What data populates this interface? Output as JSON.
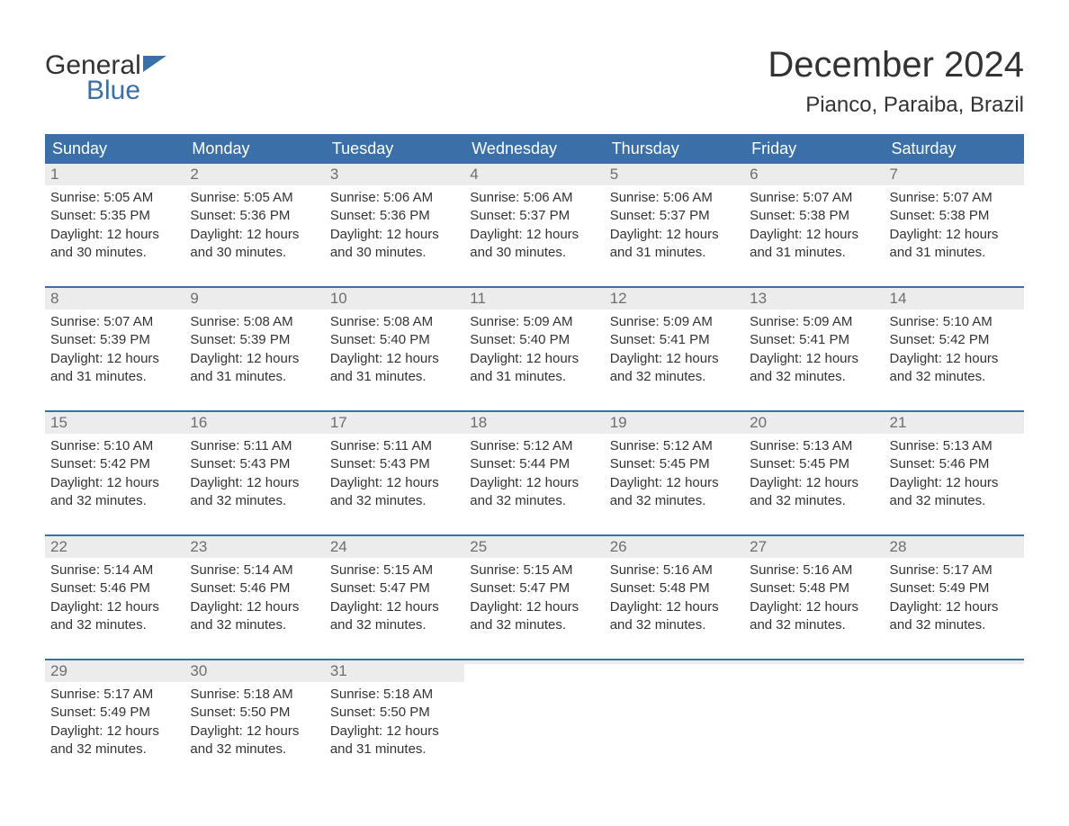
{
  "logo": {
    "text1": "General",
    "text2": "Blue"
  },
  "title": "December 2024",
  "location": "Pianco, Paraiba, Brazil",
  "colors": {
    "header_bg": "#3a6fa8",
    "header_text": "#ffffff",
    "daynum_bg": "#ececec",
    "daynum_text": "#6e6e6e",
    "body_text": "#333333",
    "week_border": "#3a6fa8",
    "logo_blue": "#3a6fa8",
    "logo_dark": "#333333",
    "background": "#ffffff"
  },
  "day_names": [
    "Sunday",
    "Monday",
    "Tuesday",
    "Wednesday",
    "Thursday",
    "Friday",
    "Saturday"
  ],
  "weeks": [
    [
      {
        "n": "1",
        "sr": "Sunrise: 5:05 AM",
        "ss": "Sunset: 5:35 PM",
        "d1": "Daylight: 12 hours",
        "d2": "and 30 minutes."
      },
      {
        "n": "2",
        "sr": "Sunrise: 5:05 AM",
        "ss": "Sunset: 5:36 PM",
        "d1": "Daylight: 12 hours",
        "d2": "and 30 minutes."
      },
      {
        "n": "3",
        "sr": "Sunrise: 5:06 AM",
        "ss": "Sunset: 5:36 PM",
        "d1": "Daylight: 12 hours",
        "d2": "and 30 minutes."
      },
      {
        "n": "4",
        "sr": "Sunrise: 5:06 AM",
        "ss": "Sunset: 5:37 PM",
        "d1": "Daylight: 12 hours",
        "d2": "and 30 minutes."
      },
      {
        "n": "5",
        "sr": "Sunrise: 5:06 AM",
        "ss": "Sunset: 5:37 PM",
        "d1": "Daylight: 12 hours",
        "d2": "and 31 minutes."
      },
      {
        "n": "6",
        "sr": "Sunrise: 5:07 AM",
        "ss": "Sunset: 5:38 PM",
        "d1": "Daylight: 12 hours",
        "d2": "and 31 minutes."
      },
      {
        "n": "7",
        "sr": "Sunrise: 5:07 AM",
        "ss": "Sunset: 5:38 PM",
        "d1": "Daylight: 12 hours",
        "d2": "and 31 minutes."
      }
    ],
    [
      {
        "n": "8",
        "sr": "Sunrise: 5:07 AM",
        "ss": "Sunset: 5:39 PM",
        "d1": "Daylight: 12 hours",
        "d2": "and 31 minutes."
      },
      {
        "n": "9",
        "sr": "Sunrise: 5:08 AM",
        "ss": "Sunset: 5:39 PM",
        "d1": "Daylight: 12 hours",
        "d2": "and 31 minutes."
      },
      {
        "n": "10",
        "sr": "Sunrise: 5:08 AM",
        "ss": "Sunset: 5:40 PM",
        "d1": "Daylight: 12 hours",
        "d2": "and 31 minutes."
      },
      {
        "n": "11",
        "sr": "Sunrise: 5:09 AM",
        "ss": "Sunset: 5:40 PM",
        "d1": "Daylight: 12 hours",
        "d2": "and 31 minutes."
      },
      {
        "n": "12",
        "sr": "Sunrise: 5:09 AM",
        "ss": "Sunset: 5:41 PM",
        "d1": "Daylight: 12 hours",
        "d2": "and 32 minutes."
      },
      {
        "n": "13",
        "sr": "Sunrise: 5:09 AM",
        "ss": "Sunset: 5:41 PM",
        "d1": "Daylight: 12 hours",
        "d2": "and 32 minutes."
      },
      {
        "n": "14",
        "sr": "Sunrise: 5:10 AM",
        "ss": "Sunset: 5:42 PM",
        "d1": "Daylight: 12 hours",
        "d2": "and 32 minutes."
      }
    ],
    [
      {
        "n": "15",
        "sr": "Sunrise: 5:10 AM",
        "ss": "Sunset: 5:42 PM",
        "d1": "Daylight: 12 hours",
        "d2": "and 32 minutes."
      },
      {
        "n": "16",
        "sr": "Sunrise: 5:11 AM",
        "ss": "Sunset: 5:43 PM",
        "d1": "Daylight: 12 hours",
        "d2": "and 32 minutes."
      },
      {
        "n": "17",
        "sr": "Sunrise: 5:11 AM",
        "ss": "Sunset: 5:43 PM",
        "d1": "Daylight: 12 hours",
        "d2": "and 32 minutes."
      },
      {
        "n": "18",
        "sr": "Sunrise: 5:12 AM",
        "ss": "Sunset: 5:44 PM",
        "d1": "Daylight: 12 hours",
        "d2": "and 32 minutes."
      },
      {
        "n": "19",
        "sr": "Sunrise: 5:12 AM",
        "ss": "Sunset: 5:45 PM",
        "d1": "Daylight: 12 hours",
        "d2": "and 32 minutes."
      },
      {
        "n": "20",
        "sr": "Sunrise: 5:13 AM",
        "ss": "Sunset: 5:45 PM",
        "d1": "Daylight: 12 hours",
        "d2": "and 32 minutes."
      },
      {
        "n": "21",
        "sr": "Sunrise: 5:13 AM",
        "ss": "Sunset: 5:46 PM",
        "d1": "Daylight: 12 hours",
        "d2": "and 32 minutes."
      }
    ],
    [
      {
        "n": "22",
        "sr": "Sunrise: 5:14 AM",
        "ss": "Sunset: 5:46 PM",
        "d1": "Daylight: 12 hours",
        "d2": "and 32 minutes."
      },
      {
        "n": "23",
        "sr": "Sunrise: 5:14 AM",
        "ss": "Sunset: 5:46 PM",
        "d1": "Daylight: 12 hours",
        "d2": "and 32 minutes."
      },
      {
        "n": "24",
        "sr": "Sunrise: 5:15 AM",
        "ss": "Sunset: 5:47 PM",
        "d1": "Daylight: 12 hours",
        "d2": "and 32 minutes."
      },
      {
        "n": "25",
        "sr": "Sunrise: 5:15 AM",
        "ss": "Sunset: 5:47 PM",
        "d1": "Daylight: 12 hours",
        "d2": "and 32 minutes."
      },
      {
        "n": "26",
        "sr": "Sunrise: 5:16 AM",
        "ss": "Sunset: 5:48 PM",
        "d1": "Daylight: 12 hours",
        "d2": "and 32 minutes."
      },
      {
        "n": "27",
        "sr": "Sunrise: 5:16 AM",
        "ss": "Sunset: 5:48 PM",
        "d1": "Daylight: 12 hours",
        "d2": "and 32 minutes."
      },
      {
        "n": "28",
        "sr": "Sunrise: 5:17 AM",
        "ss": "Sunset: 5:49 PM",
        "d1": "Daylight: 12 hours",
        "d2": "and 32 minutes."
      }
    ],
    [
      {
        "n": "29",
        "sr": "Sunrise: 5:17 AM",
        "ss": "Sunset: 5:49 PM",
        "d1": "Daylight: 12 hours",
        "d2": "and 32 minutes."
      },
      {
        "n": "30",
        "sr": "Sunrise: 5:18 AM",
        "ss": "Sunset: 5:50 PM",
        "d1": "Daylight: 12 hours",
        "d2": "and 32 minutes."
      },
      {
        "n": "31",
        "sr": "Sunrise: 5:18 AM",
        "ss": "Sunset: 5:50 PM",
        "d1": "Daylight: 12 hours",
        "d2": "and 31 minutes."
      },
      {
        "empty": true
      },
      {
        "empty": true
      },
      {
        "empty": true
      },
      {
        "empty": true
      }
    ]
  ]
}
